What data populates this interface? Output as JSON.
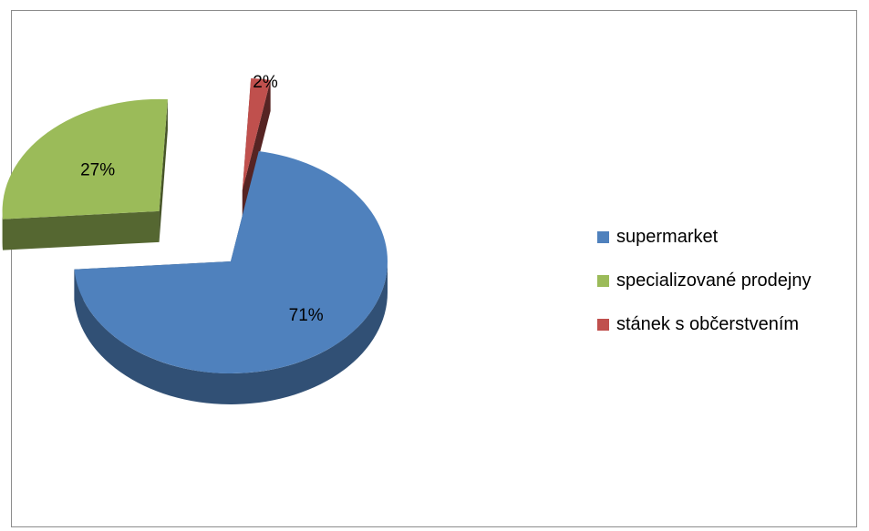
{
  "chart_data": {
    "type": "pie",
    "style": "3d-exploded",
    "categories": [
      "supermarket",
      "specializované prodejny",
      "stánek s občerstvením"
    ],
    "values": [
      71,
      27,
      2
    ],
    "data_labels": [
      "71%",
      "27%",
      "2%"
    ],
    "colors": [
      "#4f81bd",
      "#9bbb59",
      "#c0504d"
    ],
    "legend_position": "right"
  }
}
